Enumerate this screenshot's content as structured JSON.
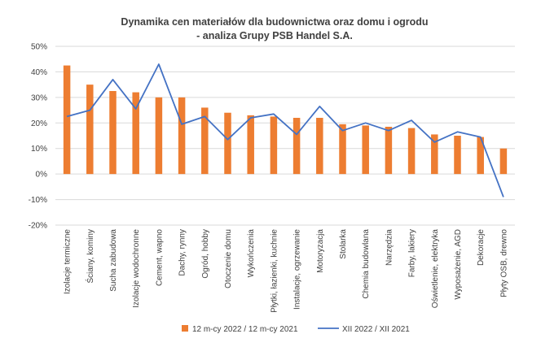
{
  "chart_data": {
    "type": "bar",
    "title": "Dynamika cen materiałów dla budownictwa oraz domu i ogrodu",
    "subtitle": "- analiza Grupy PSB Handel S.A.",
    "categories": [
      "Izolacje termiczne",
      "Ściany, kominy",
      "Sucha zabudowa",
      "Izolacje wodochronne",
      "Cement, wapno",
      "Dachy, rynny",
      "Ogród, hobby",
      "Otoczenie domu",
      "Wykończenia",
      "Płytki, łazienki, kuchnie",
      "Instalacje, ogrzewanie",
      "Motoryzacja",
      "Stolarka",
      "Chemia budowlana",
      "Narzędzia",
      "Farby, lakiery",
      "Oświetlenie, elektryka",
      "Wyposażenie, AGD",
      "Dekoracje",
      "Płyty OSB, drewno"
    ],
    "series": [
      {
        "name": "12 m-cy 2022 / 12 m-cy 2021",
        "type": "bar",
        "color": "#ED7D31",
        "values": [
          42.5,
          35,
          32.5,
          32,
          30,
          30,
          26,
          24,
          23,
          22.5,
          22,
          22,
          19.5,
          19,
          18.5,
          18,
          15.5,
          15,
          14.5,
          10
        ]
      },
      {
        "name": "XII 2022 / XII 2021",
        "type": "line",
        "color": "#4472C4",
        "values": [
          22.5,
          25,
          37,
          25.5,
          43,
          19.5,
          22.5,
          13.5,
          22,
          23.5,
          15.5,
          26.5,
          17,
          20,
          17,
          21,
          12.5,
          16.5,
          14.5,
          -9
        ]
      }
    ],
    "ylim": [
      -20,
      50
    ],
    "yticks": [
      "-20%",
      "-10%",
      "0%",
      "10%",
      "20%",
      "30%",
      "40%",
      "50%"
    ],
    "ytick_values": [
      -20,
      -10,
      0,
      10,
      20,
      30,
      40,
      50
    ],
    "grid": true,
    "legend_position": "bottom"
  }
}
